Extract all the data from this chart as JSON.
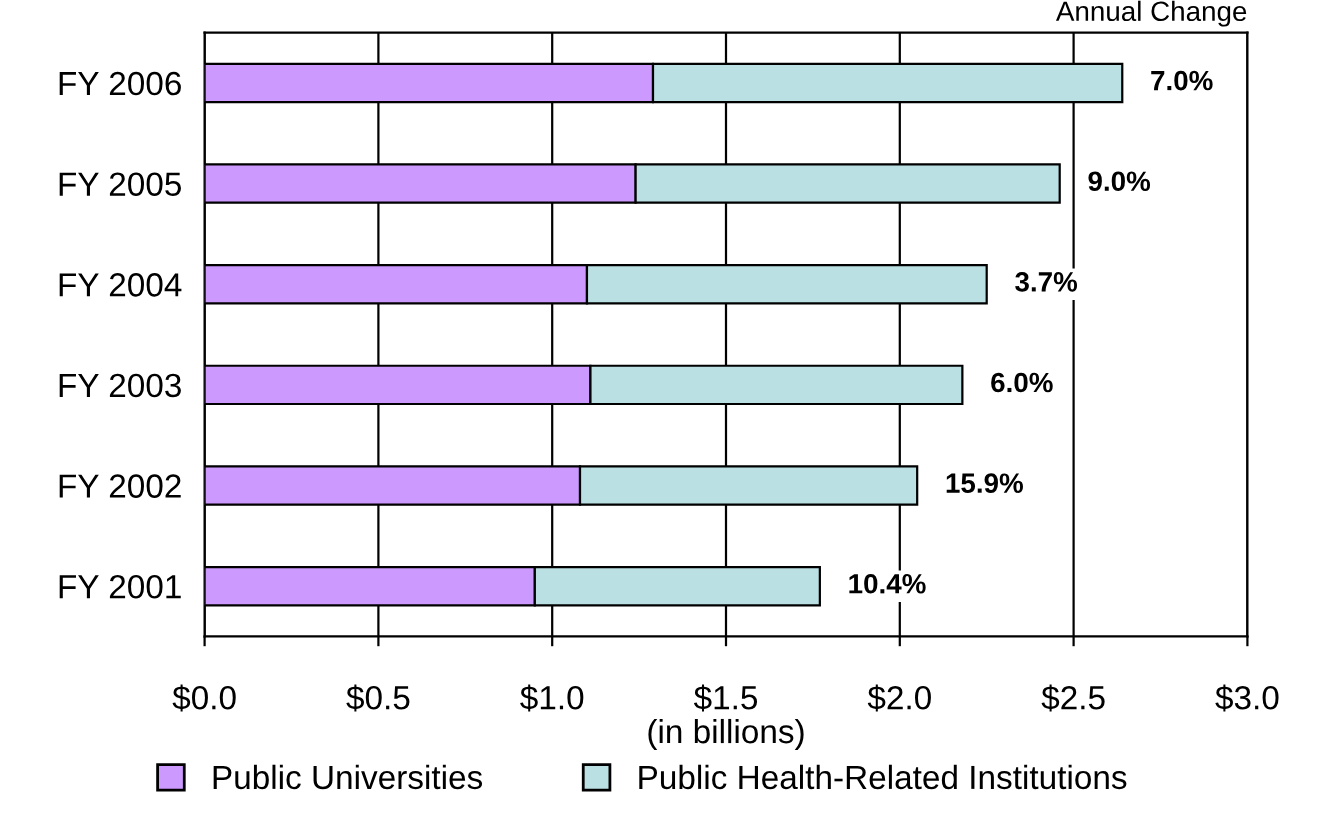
{
  "chart_data": {
    "type": "bar",
    "orientation": "horizontal",
    "stacked": true,
    "categories": [
      "FY 2006",
      "FY 2005",
      "FY 2004",
      "FY 2003",
      "FY 2002",
      "FY 2001"
    ],
    "series": [
      {
        "name": "Public Universities",
        "color": "#cc99ff",
        "values": [
          1.29,
          1.24,
          1.1,
          1.11,
          1.08,
          0.95
        ]
      },
      {
        "name": "Public Health-Related Institutions",
        "color": "#bbe0e3",
        "values": [
          1.35,
          1.22,
          1.15,
          1.07,
          0.97,
          0.82
        ]
      }
    ],
    "xlabel": "(in billions)",
    "xlim": [
      0,
      3
    ],
    "xticks": [
      {
        "value": 0,
        "label": "$0.0"
      },
      {
        "value": 0.5,
        "label": "$0.5"
      },
      {
        "value": 1,
        "label": "$1.0"
      },
      {
        "value": 1.5,
        "label": "$1.5"
      },
      {
        "value": 2,
        "label": "$2.0"
      },
      {
        "value": 2.5,
        "label": "$2.5"
      },
      {
        "value": 3,
        "label": "$3.0"
      }
    ],
    "grid": "x",
    "legend": "bottom",
    "annotations": [
      "Annual Change",
      {
        "text": "7.0%",
        "x": 2.64,
        "y": "FY 2006"
      },
      {
        "text": "9.0%",
        "x": 2.46,
        "y": "FY 2005"
      },
      {
        "text": "3.7%",
        "x": 2.25,
        "y": "FY 2004"
      },
      {
        "text": "6.0%",
        "x": 2.18,
        "y": "FY 2003"
      },
      {
        "text": "15.9%",
        "x": 2.05,
        "y": "FY 2002"
      },
      {
        "text": "10.4%",
        "x": 1.77,
        "y": "FY 2001"
      }
    ]
  }
}
